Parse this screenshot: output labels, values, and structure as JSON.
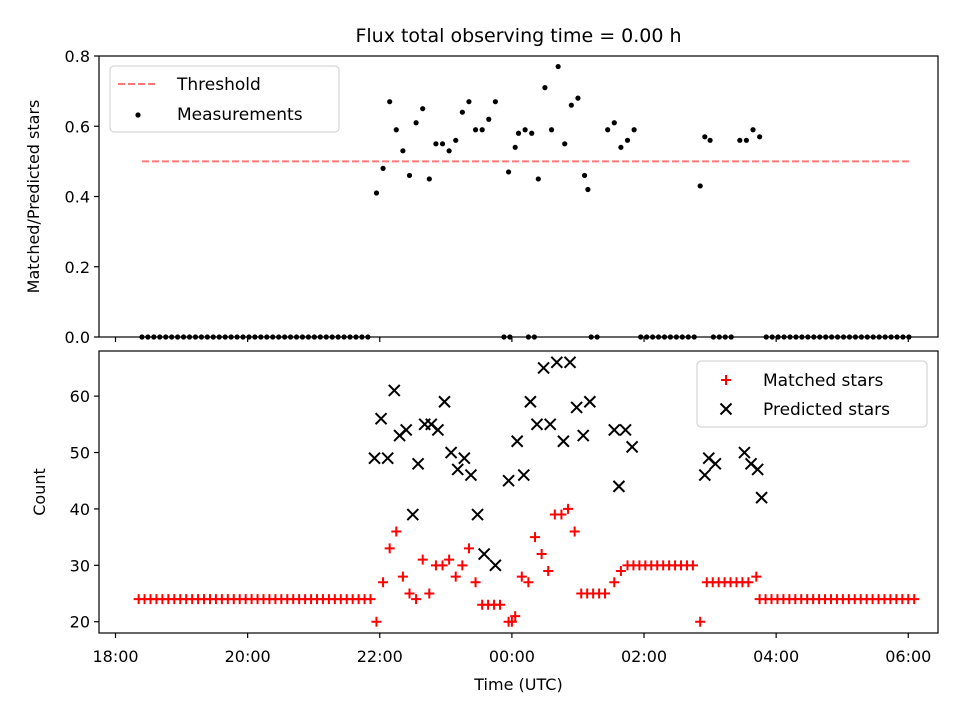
{
  "title": "Flux total observing time = 0.00 h",
  "chart_data": [
    {
      "type": "scatter",
      "panel": "top",
      "ylabel": "Matched/Predicted stars",
      "ylim": [
        0,
        0.8
      ],
      "yticks": [
        0.0,
        0.2,
        0.4,
        0.6,
        0.8
      ],
      "ytick_labels": [
        "0.0",
        "0.2",
        "0.4",
        "0.6",
        "0.8"
      ],
      "legend": {
        "position": "upper-left",
        "entries": [
          "Threshold",
          "Measurements"
        ]
      },
      "threshold": {
        "name": "Threshold",
        "value": 0.5,
        "x_start": 18.4,
        "x_end": 30.05,
        "color": "#ff7777"
      },
      "series": [
        {
          "name": "Measurements",
          "color": "#000000",
          "x": [
            21.95,
            22.05,
            22.15,
            22.25,
            22.35,
            22.45,
            22.55,
            22.65,
            22.75,
            22.85,
            22.95,
            23.05,
            23.15,
            23.25,
            23.35,
            23.45,
            23.55,
            23.65,
            23.75,
            23.95,
            24.05,
            24.1,
            24.2,
            24.3,
            24.4,
            24.5,
            24.6,
            24.7,
            24.8,
            24.9,
            25.0,
            25.1,
            25.15,
            25.45,
            25.55,
            25.65,
            25.75,
            25.85,
            26.85,
            26.92,
            27.0,
            27.45,
            27.55,
            27.65,
            27.75
          ],
          "y": [
            0.41,
            0.48,
            0.67,
            0.59,
            0.53,
            0.46,
            0.61,
            0.65,
            0.45,
            0.55,
            0.55,
            0.53,
            0.56,
            0.64,
            0.67,
            0.59,
            0.59,
            0.62,
            0.67,
            0.47,
            0.54,
            0.58,
            0.59,
            0.58,
            0.45,
            0.71,
            0.59,
            0.77,
            0.55,
            0.66,
            0.68,
            0.46,
            0.42,
            0.59,
            0.61,
            0.54,
            0.56,
            0.59,
            0.43,
            0.57,
            0.56,
            0.56,
            0.56,
            0.59,
            0.57
          ]
        },
        {
          "name": "Zero measurements",
          "color": "#000000",
          "y_value": 0,
          "x_ranges": [
            [
              18.4,
              21.88
            ],
            [
              23.88,
              24.05
            ],
            [
              24.25,
              24.35
            ],
            [
              25.2,
              25.37
            ],
            [
              25.95,
              26.8
            ],
            [
              27.05,
              27.35
            ],
            [
              27.85,
              30.05
            ]
          ],
          "step": 0.09
        }
      ]
    },
    {
      "type": "scatter",
      "panel": "bottom",
      "xlabel": "Time (UTC)",
      "ylabel": "Count",
      "xlim": [
        17.75,
        30.45
      ],
      "ylim": [
        18,
        68
      ],
      "xticks": [
        18,
        20,
        22,
        24,
        26,
        28,
        30
      ],
      "xtick_labels": [
        "18:00",
        "20:00",
        "22:00",
        "00:00",
        "02:00",
        "04:00",
        "06:00"
      ],
      "yticks": [
        20,
        30,
        40,
        50,
        60
      ],
      "ytick_labels": [
        "20",
        "30",
        "40",
        "50",
        "60"
      ],
      "legend": {
        "position": "upper-right",
        "entries": [
          "Matched stars",
          "Predicted stars"
        ]
      },
      "series": [
        {
          "name": "Matched stars",
          "marker": "plus",
          "color": "#ff0000",
          "x": [
            21.95,
            22.05,
            22.15,
            22.25,
            22.35,
            22.45,
            22.55,
            22.65,
            22.75,
            22.85,
            22.95,
            23.05,
            23.15,
            23.25,
            23.35,
            23.45,
            23.95,
            24.05,
            24.15,
            24.25,
            24.35,
            24.45,
            24.55,
            24.65,
            24.75,
            24.85,
            24.95,
            25.55,
            25.65,
            26.85
          ],
          "y": [
            20,
            27,
            33,
            36,
            28,
            25,
            24,
            31,
            25,
            30,
            30,
            31,
            28,
            30,
            33,
            27,
            20,
            21,
            28,
            27,
            35,
            32,
            29,
            39,
            39,
            40,
            36,
            27,
            29,
            20
          ]
        },
        {
          "name": "Matched stars baseline",
          "marker": "plus",
          "color": "#ff0000",
          "runs": [
            {
              "from": 18.35,
              "to": 21.88,
              "value": 24
            },
            {
              "from": 23.55,
              "to": 23.88,
              "value": 23
            },
            {
              "from": 24.0,
              "to": 24.0,
              "value": 20
            },
            {
              "from": 25.05,
              "to": 25.45,
              "value": 25
            },
            {
              "from": 25.75,
              "to": 26.8,
              "value": 30
            },
            {
              "from": 26.95,
              "to": 27.65,
              "value": 27
            },
            {
              "from": 27.7,
              "to": 27.7,
              "value": 28
            },
            {
              "from": 27.75,
              "to": 30.15,
              "value": 24
            }
          ],
          "step": 0.09
        },
        {
          "name": "Predicted stars",
          "marker": "x",
          "color": "#000000",
          "x": [
            21.92,
            22.02,
            22.12,
            22.22,
            22.3,
            22.4,
            22.5,
            22.58,
            22.68,
            22.78,
            22.88,
            22.98,
            23.08,
            23.18,
            23.28,
            23.38,
            23.48,
            23.58,
            23.75,
            23.95,
            24.08,
            24.18,
            24.28,
            24.38,
            24.48,
            24.58,
            24.68,
            24.78,
            24.88,
            24.98,
            25.08,
            25.18,
            25.55,
            25.62,
            25.72,
            25.82,
            26.92,
            26.98,
            27.08,
            27.52,
            27.62,
            27.72,
            27.78
          ],
          "y": [
            49,
            56,
            49,
            61,
            53,
            54,
            39,
            48,
            55,
            55,
            54,
            59,
            50,
            47,
            49,
            46,
            39,
            32,
            30,
            45,
            52,
            46,
            59,
            55,
            65,
            55,
            66,
            52,
            66,
            58,
            53,
            59,
            54,
            44,
            54,
            51,
            46,
            49,
            48,
            50,
            48,
            47,
            42
          ]
        }
      ]
    }
  ]
}
